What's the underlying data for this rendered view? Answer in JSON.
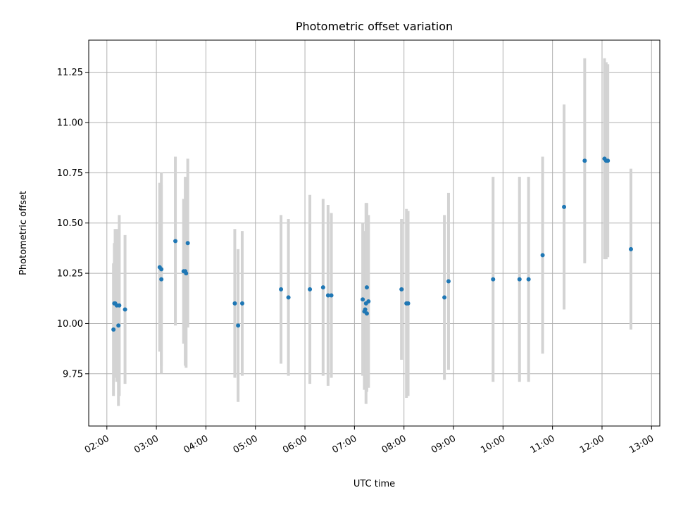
{
  "chart_data": {
    "type": "scatter",
    "title": "Photometric offset variation",
    "xlabel": "UTC time",
    "ylabel": "Photometric offset",
    "x_ticks": [
      "02:00",
      "03:00",
      "04:00",
      "05:00",
      "06:00",
      "07:00",
      "08:00",
      "09:00",
      "10:00",
      "11:00",
      "12:00",
      "13:00"
    ],
    "y_ticks": [
      "9.75",
      "10.00",
      "10.25",
      "10.50",
      "10.75",
      "11.00",
      "11.25"
    ],
    "xlim": [
      "01:38",
      "13:10"
    ],
    "ylim": [
      9.49,
      11.41
    ],
    "grid": true,
    "colors": {
      "marker": "#1f77b4",
      "errorbar": "#d3d3d3"
    },
    "series": [
      {
        "points": [
          {
            "t": "02:08",
            "y": 9.97,
            "err": 0.33
          },
          {
            "t": "02:09",
            "y": 10.1,
            "err": 0.3
          },
          {
            "t": "02:10",
            "y": 10.1,
            "err": 0.37
          },
          {
            "t": "02:12",
            "y": 10.09,
            "err": 0.38
          },
          {
            "t": "02:14",
            "y": 9.99,
            "err": 0.4
          },
          {
            "t": "02:15",
            "y": 10.09,
            "err": 0.45
          },
          {
            "t": "02:22",
            "y": 10.07,
            "err": 0.37
          },
          {
            "t": "03:04",
            "y": 10.28,
            "err": 0.42
          },
          {
            "t": "03:06",
            "y": 10.27,
            "err": 0.48
          },
          {
            "t": "03:06",
            "y": 10.22,
            "err": 0.47
          },
          {
            "t": "03:23",
            "y": 10.41,
            "err": 0.42
          },
          {
            "t": "03:33",
            "y": 10.26,
            "err": 0.36
          },
          {
            "t": "03:35",
            "y": 10.26,
            "err": 0.47
          },
          {
            "t": "03:36",
            "y": 10.25,
            "err": 0.47
          },
          {
            "t": "03:38",
            "y": 10.4,
            "err": 0.42
          },
          {
            "t": "04:35",
            "y": 10.1,
            "err": 0.37
          },
          {
            "t": "04:39",
            "y": 9.99,
            "err": 0.38
          },
          {
            "t": "04:44",
            "y": 10.1,
            "err": 0.36
          },
          {
            "t": "05:31",
            "y": 10.17,
            "err": 0.37
          },
          {
            "t": "05:40",
            "y": 10.13,
            "err": 0.39
          },
          {
            "t": "06:06",
            "y": 10.17,
            "err": 0.47
          },
          {
            "t": "06:22",
            "y": 10.18,
            "err": 0.44
          },
          {
            "t": "06:28",
            "y": 10.14,
            "err": 0.45
          },
          {
            "t": "06:32",
            "y": 10.14,
            "err": 0.41
          },
          {
            "t": "07:10",
            "y": 10.12,
            "err": 0.38
          },
          {
            "t": "07:12",
            "y": 10.06,
            "err": 0.39
          },
          {
            "t": "07:13",
            "y": 10.07,
            "err": 0.39
          },
          {
            "t": "07:14",
            "y": 10.1,
            "err": 0.5
          },
          {
            "t": "07:15",
            "y": 10.18,
            "err": 0.42
          },
          {
            "t": "07:15",
            "y": 10.05,
            "err": 0.39
          },
          {
            "t": "07:17",
            "y": 10.11,
            "err": 0.43
          },
          {
            "t": "07:57",
            "y": 10.17,
            "err": 0.35
          },
          {
            "t": "08:03",
            "y": 10.1,
            "err": 0.47
          },
          {
            "t": "08:05",
            "y": 10.1,
            "err": 0.46
          },
          {
            "t": "08:49",
            "y": 10.13,
            "err": 0.41
          },
          {
            "t": "08:54",
            "y": 10.21,
            "err": 0.44
          },
          {
            "t": "09:48",
            "y": 10.22,
            "err": 0.51
          },
          {
            "t": "10:20",
            "y": 10.22,
            "err": 0.51
          },
          {
            "t": "10:31",
            "y": 10.22,
            "err": 0.51
          },
          {
            "t": "10:48",
            "y": 10.34,
            "err": 0.49
          },
          {
            "t": "11:14",
            "y": 10.58,
            "err": 0.51
          },
          {
            "t": "11:39",
            "y": 10.81,
            "err": 0.51
          },
          {
            "t": "12:03",
            "y": 10.82,
            "err": 0.5
          },
          {
            "t": "12:05",
            "y": 10.81,
            "err": 0.49
          },
          {
            "t": "12:07",
            "y": 10.81,
            "err": 0.48
          },
          {
            "t": "12:35",
            "y": 10.37,
            "err": 0.4
          }
        ]
      }
    ]
  }
}
